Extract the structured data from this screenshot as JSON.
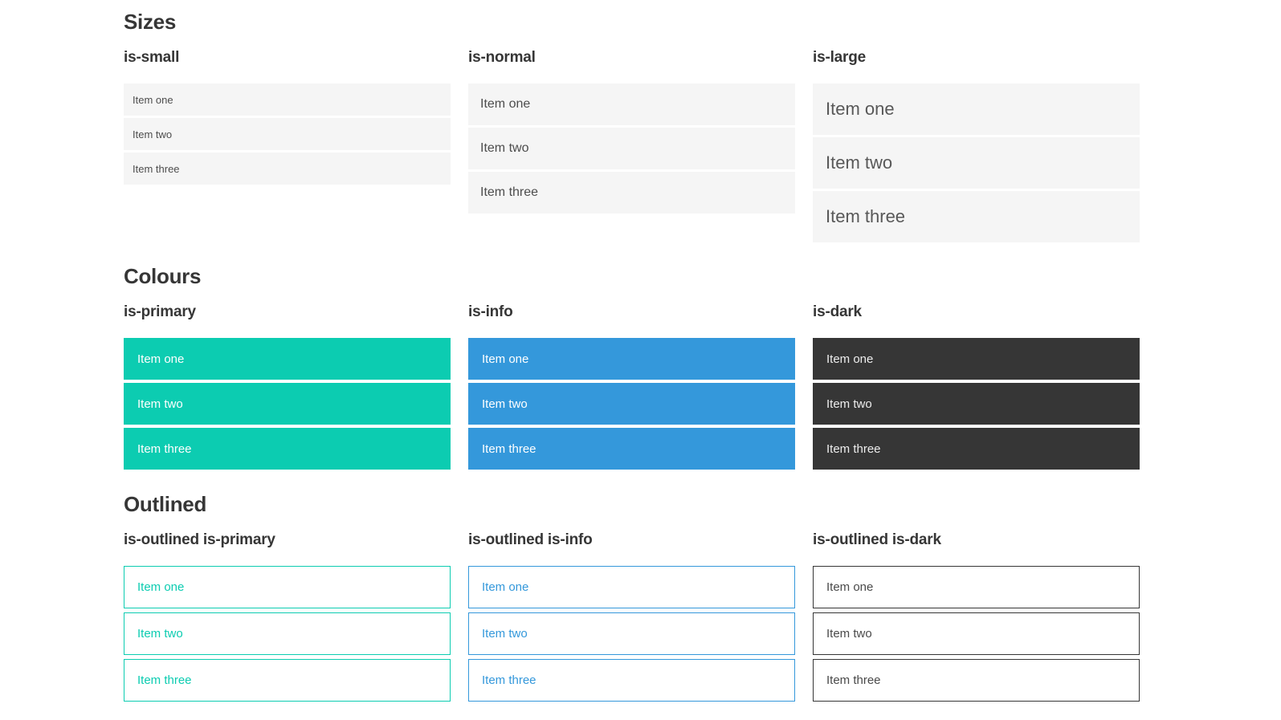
{
  "colors": {
    "primary": "#0cccb1",
    "info": "#3498db",
    "dark": "#363636",
    "item_background": "#f5f5f5",
    "item_text": "#4d4d4d",
    "heading_text": "#363636",
    "white_text": "#ffffff"
  },
  "sections": [
    {
      "title": "Sizes",
      "columns": [
        {
          "heading": "is-small",
          "items": [
            "Item one",
            "Item two",
            "Item three"
          ]
        },
        {
          "heading": "is-normal",
          "items": [
            "Item one",
            "Item two",
            "Item three"
          ]
        },
        {
          "heading": "is-large",
          "items": [
            "Item one",
            "Item two",
            "Item three"
          ]
        }
      ]
    },
    {
      "title": "Colours",
      "columns": [
        {
          "heading": "is-primary",
          "items": [
            "Item one",
            "Item two",
            "Item three"
          ]
        },
        {
          "heading": "is-info",
          "items": [
            "Item one",
            "Item two",
            "Item three"
          ]
        },
        {
          "heading": "is-dark",
          "items": [
            "Item one",
            "Item two",
            "Item three"
          ]
        }
      ]
    },
    {
      "title": "Outlined",
      "columns": [
        {
          "heading": "is-outlined is-primary",
          "items": [
            "Item one",
            "Item two",
            "Item three"
          ]
        },
        {
          "heading": "is-outlined is-info",
          "items": [
            "Item one",
            "Item two",
            "Item three"
          ]
        },
        {
          "heading": "is-outlined is-dark",
          "items": [
            "Item one",
            "Item two",
            "Item three"
          ]
        }
      ]
    }
  ]
}
